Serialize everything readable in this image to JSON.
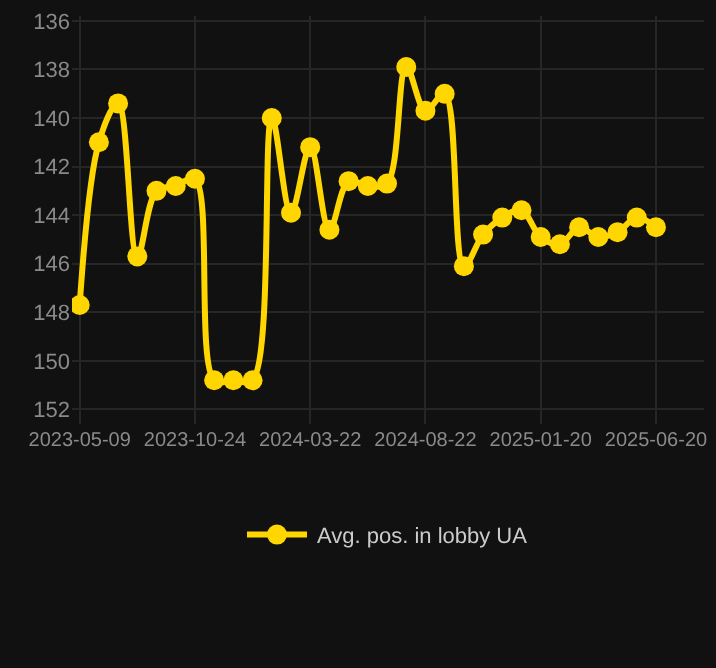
{
  "chart_data": {
    "type": "line",
    "categories": [
      "2023-05-09",
      null,
      null,
      null,
      null,
      null,
      "2023-10-24",
      null,
      null,
      null,
      null,
      null,
      "2024-03-22",
      null,
      null,
      null,
      null,
      null,
      "2024-08-22",
      null,
      null,
      null,
      null,
      null,
      "2025-01-20",
      null,
      null,
      null,
      null,
      null,
      "2025-06-20"
    ],
    "series": [
      {
        "name": "Avg. pos. in lobby UA",
        "color": "#ffd600",
        "values": [
          147.7,
          141.0,
          139.4,
          145.7,
          143.0,
          142.8,
          142.5,
          150.8,
          150.8,
          150.8,
          140.0,
          143.9,
          141.2,
          144.6,
          142.6,
          142.8,
          142.7,
          137.9,
          139.7,
          139.0,
          146.1,
          144.8,
          144.1,
          143.8,
          144.9,
          145.2,
          144.5,
          144.9,
          144.7,
          144.1,
          144.5
        ]
      }
    ],
    "ylim": [
      152.6,
      135.8
    ],
    "yticks": [
      136,
      138,
      140,
      142,
      144,
      146,
      148,
      150,
      152
    ],
    "grid": true,
    "legend": "bottom",
    "marker": "circle",
    "line_style": "solid"
  }
}
